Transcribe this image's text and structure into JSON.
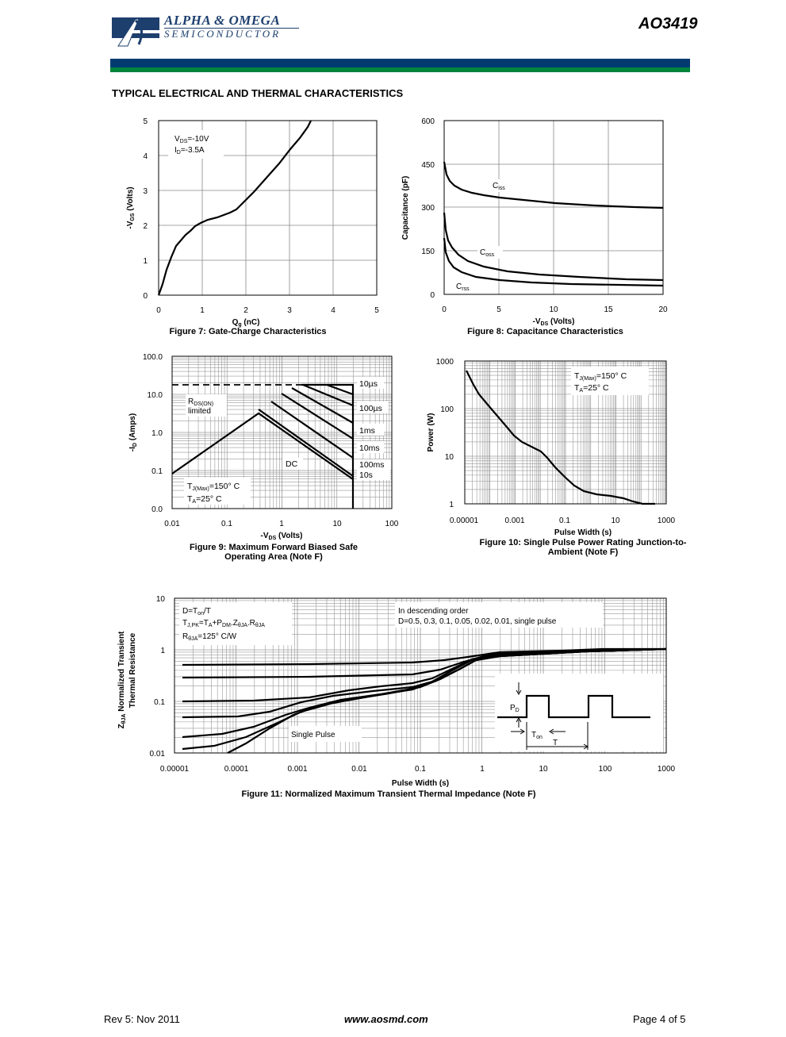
{
  "header": {
    "company_line1": "ALPHA & OMEGA",
    "company_line2": "SEMICONDUCTOR",
    "part_number": "AO3419",
    "bar_colors": [
      "#003a70",
      "#00843d"
    ]
  },
  "section_title": "TYPICAL ELECTRICAL AND THERMAL CHARACTERISTICS",
  "figures": {
    "fig7": {
      "caption": "Figure 7: Gate-Charge Characteristics",
      "xlabel_main": "Q",
      "xlabel_sub": "g",
      "xlabel_unit": " (nC)",
      "ylabel_pre": "-V",
      "ylabel_sub": "GS",
      "ylabel_unit": " (Volts)",
      "ann_vds": "=-10V",
      "ann_vds_pre": "V",
      "ann_vds_sub": "DS",
      "ann_id": "=-3.5A",
      "ann_id_pre": "I",
      "ann_id_sub": "D",
      "x_ticks": [
        "0",
        "1",
        "2",
        "3",
        "4",
        "5"
      ],
      "y_ticks": [
        "0",
        "1",
        "2",
        "3",
        "4",
        "5"
      ]
    },
    "fig8": {
      "caption": "Figure 8: Capacitance Characteristics",
      "xlabel_pre": "-V",
      "xlabel_sub": "DS",
      "xlabel_unit": " (Volts)",
      "ylabel": "Capacitance (pF)",
      "x_ticks": [
        "0",
        "5",
        "10",
        "15",
        "20"
      ],
      "y_ticks": [
        "0",
        "150",
        "300",
        "450",
        "600"
      ],
      "labels": {
        "ciss": "C",
        "ciss_sub": "iss",
        "coss": "C",
        "coss_sub": "oss",
        "crss": "C",
        "crss_sub": "rss"
      }
    },
    "fig9": {
      "caption_line1": "Figure 9: Maximum Forward Biased Safe",
      "caption_line2": "Operating Area (Note F)",
      "xlabel_pre": "-V",
      "xlabel_sub": "DS",
      "xlabel_unit": " (Volts)",
      "ylabel_pre": "-I",
      "ylabel_sub": "D",
      "ylabel_unit": " (Amps)",
      "x_ticks": [
        "0.01",
        "0.1",
        "1",
        "10",
        "100"
      ],
      "y_ticks": [
        "0.0",
        "0.1",
        "1.0",
        "10.0",
        "100.0"
      ],
      "rds_label": "R",
      "rds_sub": "DS(ON)",
      "rds_label2": "limited",
      "curve_labels": [
        "10µs",
        "100µs",
        "1ms",
        "10ms",
        "100ms",
        "10s",
        "DC"
      ],
      "tj_label": "T",
      "tj_sub": "J(Max)",
      "tj_val": "=150° C",
      "ta_label": "T",
      "ta_sub": "A",
      "ta_val": "=25° C"
    },
    "fig10": {
      "caption_line1": "Figure 10: Single Pulse Power Rating Junction-to-",
      "caption_line2": "Ambient (Note F)",
      "xlabel": "Pulse Width (s)",
      "ylabel": "Power (W)",
      "x_ticks": [
        "0.00001",
        "0.001",
        "0.1",
        "10",
        "1000"
      ],
      "y_ticks": [
        "1",
        "10",
        "100",
        "1000"
      ],
      "tj_label": "T",
      "tj_sub": "J(Max)",
      "tj_val": "=150° C",
      "ta_label": "T",
      "ta_sub": "A",
      "ta_val": "=25° C"
    },
    "fig11": {
      "caption": "Figure 11: Normalized Maximum Transient Thermal Impedance (Note F)",
      "xlabel": "Pulse Width (s)",
      "ylabel_line1": "Normalized Transient",
      "ylabel_line2": "Thermal Resistance",
      "ylabel_pre": "Z",
      "ylabel_sub": "θJA",
      "x_ticks": [
        "0.00001",
        "0.0001",
        "0.001",
        "0.01",
        "0.1",
        "1",
        "10",
        "100",
        "1000"
      ],
      "y_ticks": [
        "0.01",
        "0.1",
        "1",
        "10"
      ],
      "ann1": "D=T",
      "ann1_sub": "on",
      "ann1_tail": "/T",
      "ann2": "T",
      "ann2_sub": "J,PK",
      "ann2_mid": "=T",
      "ann2_sub2": "A",
      "ann2_mid2": "+P",
      "ann2_sub3": "DM",
      "ann2_mid3": ".Z",
      "ann2_sub4": "θJA",
      "ann2_mid4": ".R",
      "ann2_sub5": "θJA",
      "ann3": "R",
      "ann3_sub": "θJA",
      "ann3_tail": "=125° C/W",
      "order_line1": "In descending order",
      "order_line2": "D=0.5, 0.3, 0.1, 0.05, 0.02, 0.01, single pulse",
      "single_pulse": "Single Pulse",
      "pd_label": "P",
      "pd_sub": "D",
      "ton_label": "T",
      "ton_sub": "on",
      "t_label": "T"
    }
  },
  "footer": {
    "rev": "Rev 5: Nov 2011",
    "website": "www.aosmd.com",
    "page": "Page 4 of 5"
  }
}
